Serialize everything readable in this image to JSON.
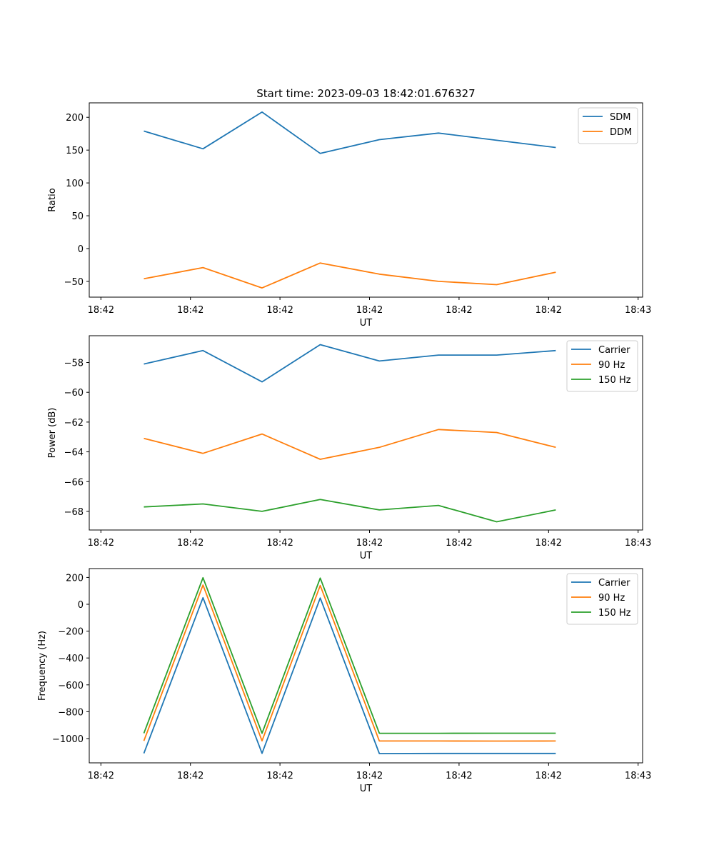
{
  "chart_data": [
    {
      "type": "line",
      "title": "Start time: 2023-09-03 18:42:01.676327",
      "xlabel": "UT",
      "ylabel": "Ratio",
      "x_seconds_after_18_42_00": [
        4.8,
        11.4,
        18.0,
        24.5,
        31.1,
        37.7,
        44.2,
        50.8
      ],
      "xlim": [
        -1.3,
        60.5
      ],
      "xticks": [
        0,
        10,
        20,
        30,
        40,
        50,
        60
      ],
      "xtick_labels": [
        "18:42",
        "18:42",
        "18:42",
        "18:42",
        "18:42",
        "18:42",
        "18:43"
      ],
      "ylim": [
        -74,
        222
      ],
      "yticks": [
        -50,
        0,
        50,
        100,
        150,
        200
      ],
      "ytick_labels": [
        "−50",
        "0",
        "50",
        "100",
        "150",
        "200"
      ],
      "legend": "top-right",
      "series": [
        {
          "name": "SDM",
          "color": "#1f77b4",
          "values": [
            179,
            152,
            208,
            145,
            166,
            176,
            165,
            154
          ]
        },
        {
          "name": "DDM",
          "color": "#ff7f0e",
          "values": [
            -46,
            -29,
            -60,
            -22,
            -39,
            -50,
            -55,
            -36
          ]
        }
      ]
    },
    {
      "type": "line",
      "xlabel": "UT",
      "ylabel": "Power (dB)",
      "x_seconds_after_18_42_00": [
        4.8,
        11.4,
        18.0,
        24.5,
        31.1,
        37.7,
        44.2,
        50.8
      ],
      "xlim": [
        -1.3,
        60.5
      ],
      "xticks": [
        0,
        10,
        20,
        30,
        40,
        50,
        60
      ],
      "xtick_labels": [
        "18:42",
        "18:42",
        "18:42",
        "18:42",
        "18:42",
        "18:42",
        "18:43"
      ],
      "ylim": [
        -69.25,
        -56.2
      ],
      "yticks": [
        -68,
        -66,
        -64,
        -62,
        -60,
        -58
      ],
      "ytick_labels": [
        "−68",
        "−66",
        "−64",
        "−62",
        "−60",
        "−58"
      ],
      "legend": "top-right",
      "series": [
        {
          "name": "Carrier",
          "color": "#1f77b4",
          "values": [
            -58.1,
            -57.2,
            -59.3,
            -56.8,
            -57.9,
            -57.5,
            -57.5,
            -57.2
          ]
        },
        {
          "name": "90 Hz",
          "color": "#ff7f0e",
          "values": [
            -63.1,
            -64.1,
            -62.8,
            -64.5,
            -63.7,
            -62.5,
            -62.7,
            -63.7
          ]
        },
        {
          "name": "150 Hz",
          "color": "#2ca02c",
          "values": [
            -67.7,
            -67.5,
            -68.0,
            -67.2,
            -67.9,
            -67.6,
            -68.7,
            -67.9
          ]
        }
      ]
    },
    {
      "type": "line",
      "xlabel": "UT",
      "ylabel": "Frequency (Hz)",
      "x_seconds_after_18_42_00": [
        4.8,
        11.4,
        18.0,
        24.5,
        31.1,
        37.7,
        44.2,
        50.8
      ],
      "xlim": [
        -1.3,
        60.5
      ],
      "xticks": [
        0,
        10,
        20,
        30,
        40,
        50,
        60
      ],
      "xtick_labels": [
        "18:42",
        "18:42",
        "18:42",
        "18:42",
        "18:42",
        "18:42",
        "18:43"
      ],
      "ylim": [
        -1181,
        266
      ],
      "yticks": [
        -1000,
        -800,
        -600,
        -400,
        -200,
        0,
        200
      ],
      "ytick_labels": [
        "−1000",
        "−800",
        "−600",
        "−400",
        "−200",
        "0",
        "200"
      ],
      "legend": "top-right",
      "series": [
        {
          "name": "Carrier",
          "color": "#1f77b4",
          "values": [
            -1110,
            49,
            -1110,
            47,
            -1112,
            -1111,
            -1111,
            -1111
          ]
        },
        {
          "name": "90 Hz",
          "color": "#ff7f0e",
          "values": [
            -1017,
            143,
            -1017,
            140,
            -1018,
            -1018,
            -1019,
            -1018
          ]
        },
        {
          "name": "150 Hz",
          "color": "#2ca02c",
          "values": [
            -961,
            198,
            -961,
            195,
            -961,
            -961,
            -960,
            -960
          ]
        }
      ]
    }
  ]
}
